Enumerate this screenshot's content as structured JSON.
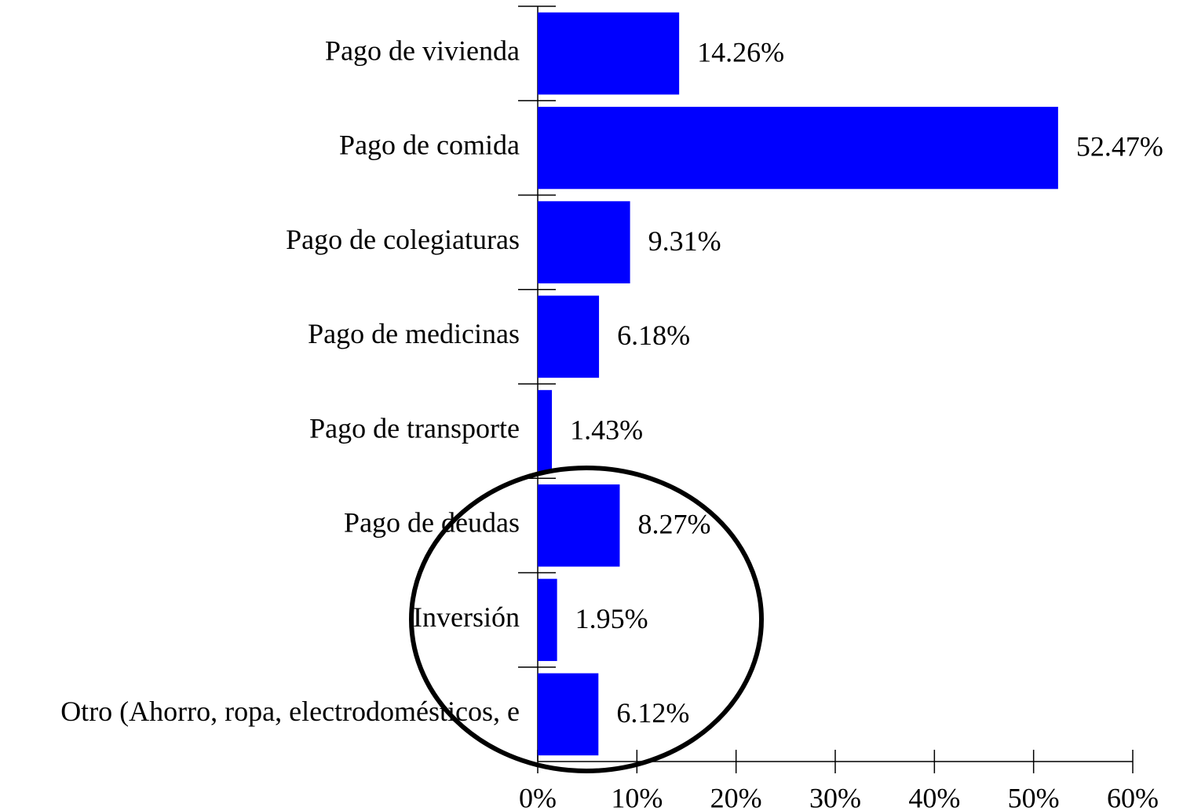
{
  "chart_data": {
    "type": "barh",
    "categories": [
      "Pago de vivienda",
      "Pago de comida",
      "Pago de colegiaturas",
      "Pago de medicinas",
      "Pago de transporte",
      "Pago de deudas",
      "Inversión",
      "Otro (Ahorro, ropa, electrodomésticos, e"
    ],
    "values": [
      14.26,
      52.47,
      9.31,
      6.18,
      1.43,
      8.27,
      1.95,
      6.12
    ],
    "value_labels": [
      "14.26%",
      "52.47%",
      "9.31%",
      "6.18%",
      "1.43%",
      "8.27%",
      "1.95%",
      "6.12%"
    ],
    "color": "#0000ff",
    "xlim": [
      0,
      60
    ],
    "xticks": [
      {
        "value": 0,
        "label": "0%"
      },
      {
        "value": 10,
        "label": "10%"
      },
      {
        "value": 20,
        "label": "20%"
      },
      {
        "value": 30,
        "label": "30%"
      },
      {
        "value": 40,
        "label": "40%"
      },
      {
        "value": 50,
        "label": "50%"
      },
      {
        "value": 60,
        "label": "60%"
      }
    ],
    "grid": false
  }
}
